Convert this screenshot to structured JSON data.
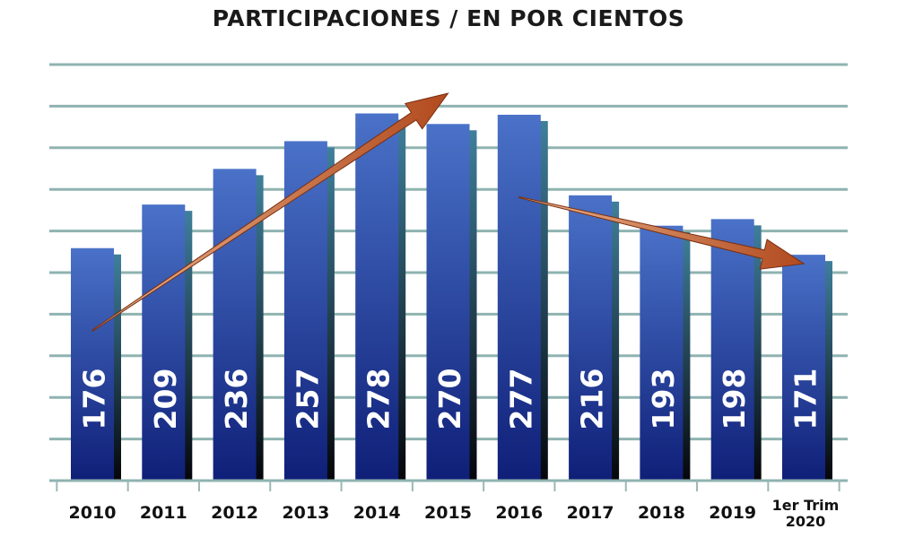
{
  "chart_data": {
    "type": "bar",
    "title": "PARTICIPACIONES / EN POR CIENTOS",
    "categories": [
      "2010",
      "2011",
      "2012",
      "2013",
      "2014",
      "2015",
      "2016",
      "2017",
      "2018",
      "2019",
      "1er Trim 2020"
    ],
    "category_lines": [
      [
        "2010"
      ],
      [
        "2011"
      ],
      [
        "2012"
      ],
      [
        "2013"
      ],
      [
        "2014"
      ],
      [
        "2015"
      ],
      [
        "2016"
      ],
      [
        "2017"
      ],
      [
        "2018"
      ],
      [
        "2019"
      ],
      [
        "1er Trim",
        "2020"
      ]
    ],
    "values": [
      176,
      209,
      236,
      257,
      278,
      270,
      277,
      216,
      193,
      198,
      171
    ],
    "ylim": [
      0,
      315
    ],
    "grid": true,
    "bar_color_top": "#4a72c8",
    "bar_color_bottom": "#0f1f78",
    "grid_color": "#8fb3b0",
    "arrow_color": "#b8522a",
    "annotations": [
      {
        "type": "arrow",
        "from_category": "2010",
        "from_value": 176,
        "to_category": "2015",
        "to_value": 300
      },
      {
        "type": "arrow",
        "from_category": "2016",
        "from_value": 277,
        "to_category": "1er Trim 2020",
        "to_value": 171
      }
    ]
  }
}
